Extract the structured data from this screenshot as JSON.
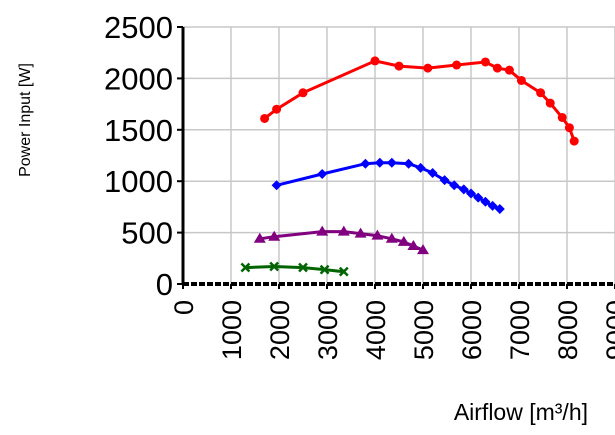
{
  "chart_data": {
    "type": "line",
    "title": "",
    "xlabel": "Airflow  [m³/h]",
    "ylabel": "Power Input [W]",
    "xlim": [
      0,
      9000
    ],
    "ylim": [
      0,
      2500
    ],
    "x_ticks": [
      0,
      1000,
      2000,
      3000,
      4000,
      5000,
      6000,
      7000,
      8000,
      9000
    ],
    "y_ticks": [
      0,
      500,
      1000,
      1500,
      2000,
      2500
    ],
    "grid": true,
    "legend": "none",
    "series": [
      {
        "color": "#ff0000",
        "marker": "circle",
        "points": [
          [
            1700,
            1610
          ],
          [
            1950,
            1700
          ],
          [
            2500,
            1860
          ],
          [
            4000,
            2170
          ],
          [
            4500,
            2120
          ],
          [
            5100,
            2100
          ],
          [
            5700,
            2130
          ],
          [
            6300,
            2160
          ],
          [
            6550,
            2100
          ],
          [
            6800,
            2080
          ],
          [
            7050,
            1980
          ],
          [
            7450,
            1860
          ],
          [
            7650,
            1760
          ],
          [
            7900,
            1620
          ],
          [
            8050,
            1520
          ],
          [
            8150,
            1390
          ]
        ]
      },
      {
        "color": "#0000ff",
        "marker": "diamond",
        "points": [
          [
            1950,
            960
          ],
          [
            2900,
            1070
          ],
          [
            3800,
            1170
          ],
          [
            4100,
            1180
          ],
          [
            4350,
            1180
          ],
          [
            4700,
            1170
          ],
          [
            4950,
            1130
          ],
          [
            5200,
            1080
          ],
          [
            5450,
            1010
          ],
          [
            5650,
            960
          ],
          [
            5850,
            920
          ],
          [
            6000,
            880
          ],
          [
            6150,
            840
          ],
          [
            6300,
            800
          ],
          [
            6450,
            760
          ],
          [
            6600,
            730
          ]
        ]
      },
      {
        "color": "#800080",
        "marker": "triangle",
        "points": [
          [
            1600,
            440
          ],
          [
            1900,
            460
          ],
          [
            2900,
            510
          ],
          [
            3350,
            510
          ],
          [
            3700,
            490
          ],
          [
            4050,
            470
          ],
          [
            4350,
            440
          ],
          [
            4600,
            410
          ],
          [
            4800,
            370
          ],
          [
            5000,
            330
          ]
        ]
      },
      {
        "color": "#006400",
        "marker": "x",
        "points": [
          [
            1300,
            160
          ],
          [
            1900,
            170
          ],
          [
            2500,
            160
          ],
          [
            2950,
            140
          ],
          [
            3350,
            120
          ]
        ]
      }
    ]
  }
}
